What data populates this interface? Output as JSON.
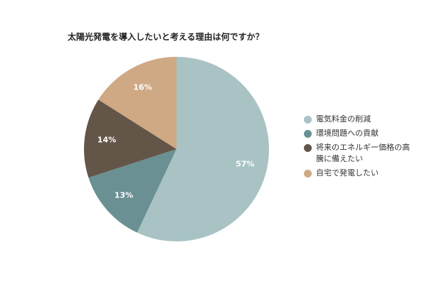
{
  "chart_data": {
    "type": "pie",
    "title": "太陽光発電を導入したいと考える理由は何ですか？",
    "categories": [
      "電気料金の削減",
      "環境問題への貢献",
      "将来のエネルギー価格の高騰に備えたい",
      "自宅で発電したい"
    ],
    "values": [
      57,
      13,
      14,
      16
    ],
    "value_labels": [
      "57%",
      "13%",
      "14%",
      "16%"
    ],
    "colors": [
      "#a9c3c4",
      "#6a9093",
      "#645549",
      "#cea984"
    ],
    "legend": {
      "placement": "right",
      "lines": [
        [
          "電気料金の削減"
        ],
        [
          "環境問題への貢献"
        ],
        [
          "将来のエネルギー価格の高",
          "騰に備えたい"
        ],
        [
          "自宅で発電したい"
        ]
      ]
    }
  }
}
